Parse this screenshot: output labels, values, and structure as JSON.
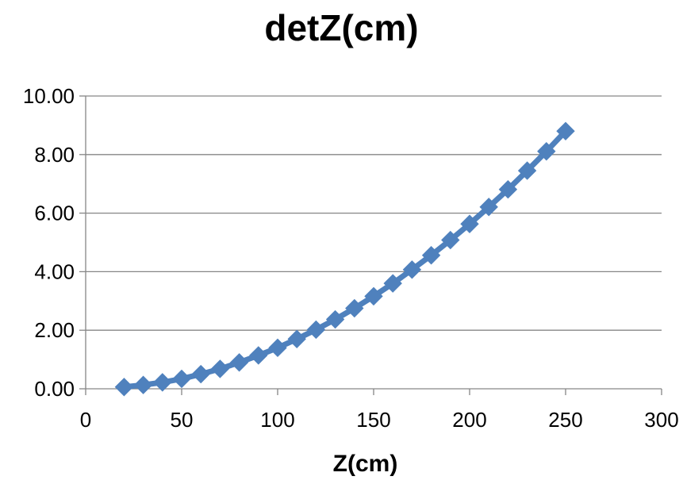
{
  "chart_data": {
    "type": "line",
    "title": "detZ(cm)",
    "xlabel": "Z(cm)",
    "ylabel": "",
    "xlim": [
      0,
      300
    ],
    "ylim": [
      0,
      10
    ],
    "x_ticks": [
      "0",
      "50",
      "100",
      "150",
      "200",
      "250",
      "300"
    ],
    "y_ticks": [
      "0.00",
      "2.00",
      "4.00",
      "6.00",
      "8.00",
      "10.00"
    ],
    "grid": "horizontal",
    "legend": "none",
    "series": [
      {
        "color": "#4F81BD",
        "marker": "diamond",
        "x": [
          20,
          30,
          40,
          50,
          60,
          70,
          80,
          90,
          100,
          110,
          120,
          130,
          140,
          150,
          160,
          170,
          180,
          190,
          200,
          210,
          220,
          230,
          240,
          250
        ],
        "y": [
          0.06,
          0.13,
          0.22,
          0.34,
          0.5,
          0.68,
          0.9,
          1.14,
          1.4,
          1.7,
          2.02,
          2.37,
          2.75,
          3.16,
          3.6,
          4.07,
          4.56,
          5.08,
          5.63,
          6.21,
          6.81,
          7.45,
          8.11,
          8.8
        ]
      }
    ]
  }
}
